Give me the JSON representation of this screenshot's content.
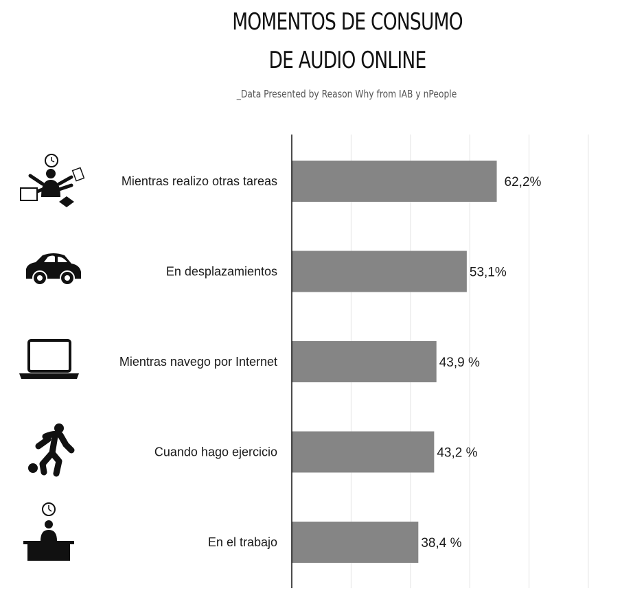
{
  "header": {
    "title_line1": "MOMENTOS DE CONSUMO",
    "title_line2": "DE AUDIO ONLINE",
    "subtitle": "_Data Presented by Reason Why from IAB y nPeople"
  },
  "chart_data": {
    "type": "bar",
    "orientation": "horizontal",
    "categories": [
      "Mientras realizo otras tareas",
      "En desplazamientos",
      "Mientras navego por Internet",
      "Cuando hago ejercicio",
      "En el trabajo"
    ],
    "values": [
      62.2,
      53.1,
      43.9,
      43.2,
      38.4
    ],
    "value_labels": [
      "62,2%",
      "53,1%",
      "43,9 %",
      "43,2 %",
      "38,4 %"
    ],
    "icons": [
      "multitasking-icon",
      "car-icon",
      "laptop-icon",
      "runner-icon",
      "office-worker-icon"
    ],
    "xlim": [
      0,
      100
    ],
    "grid": true,
    "bar_color": "#858585",
    "highlight_color": "#3fc0e6",
    "highlight_index": 0
  }
}
